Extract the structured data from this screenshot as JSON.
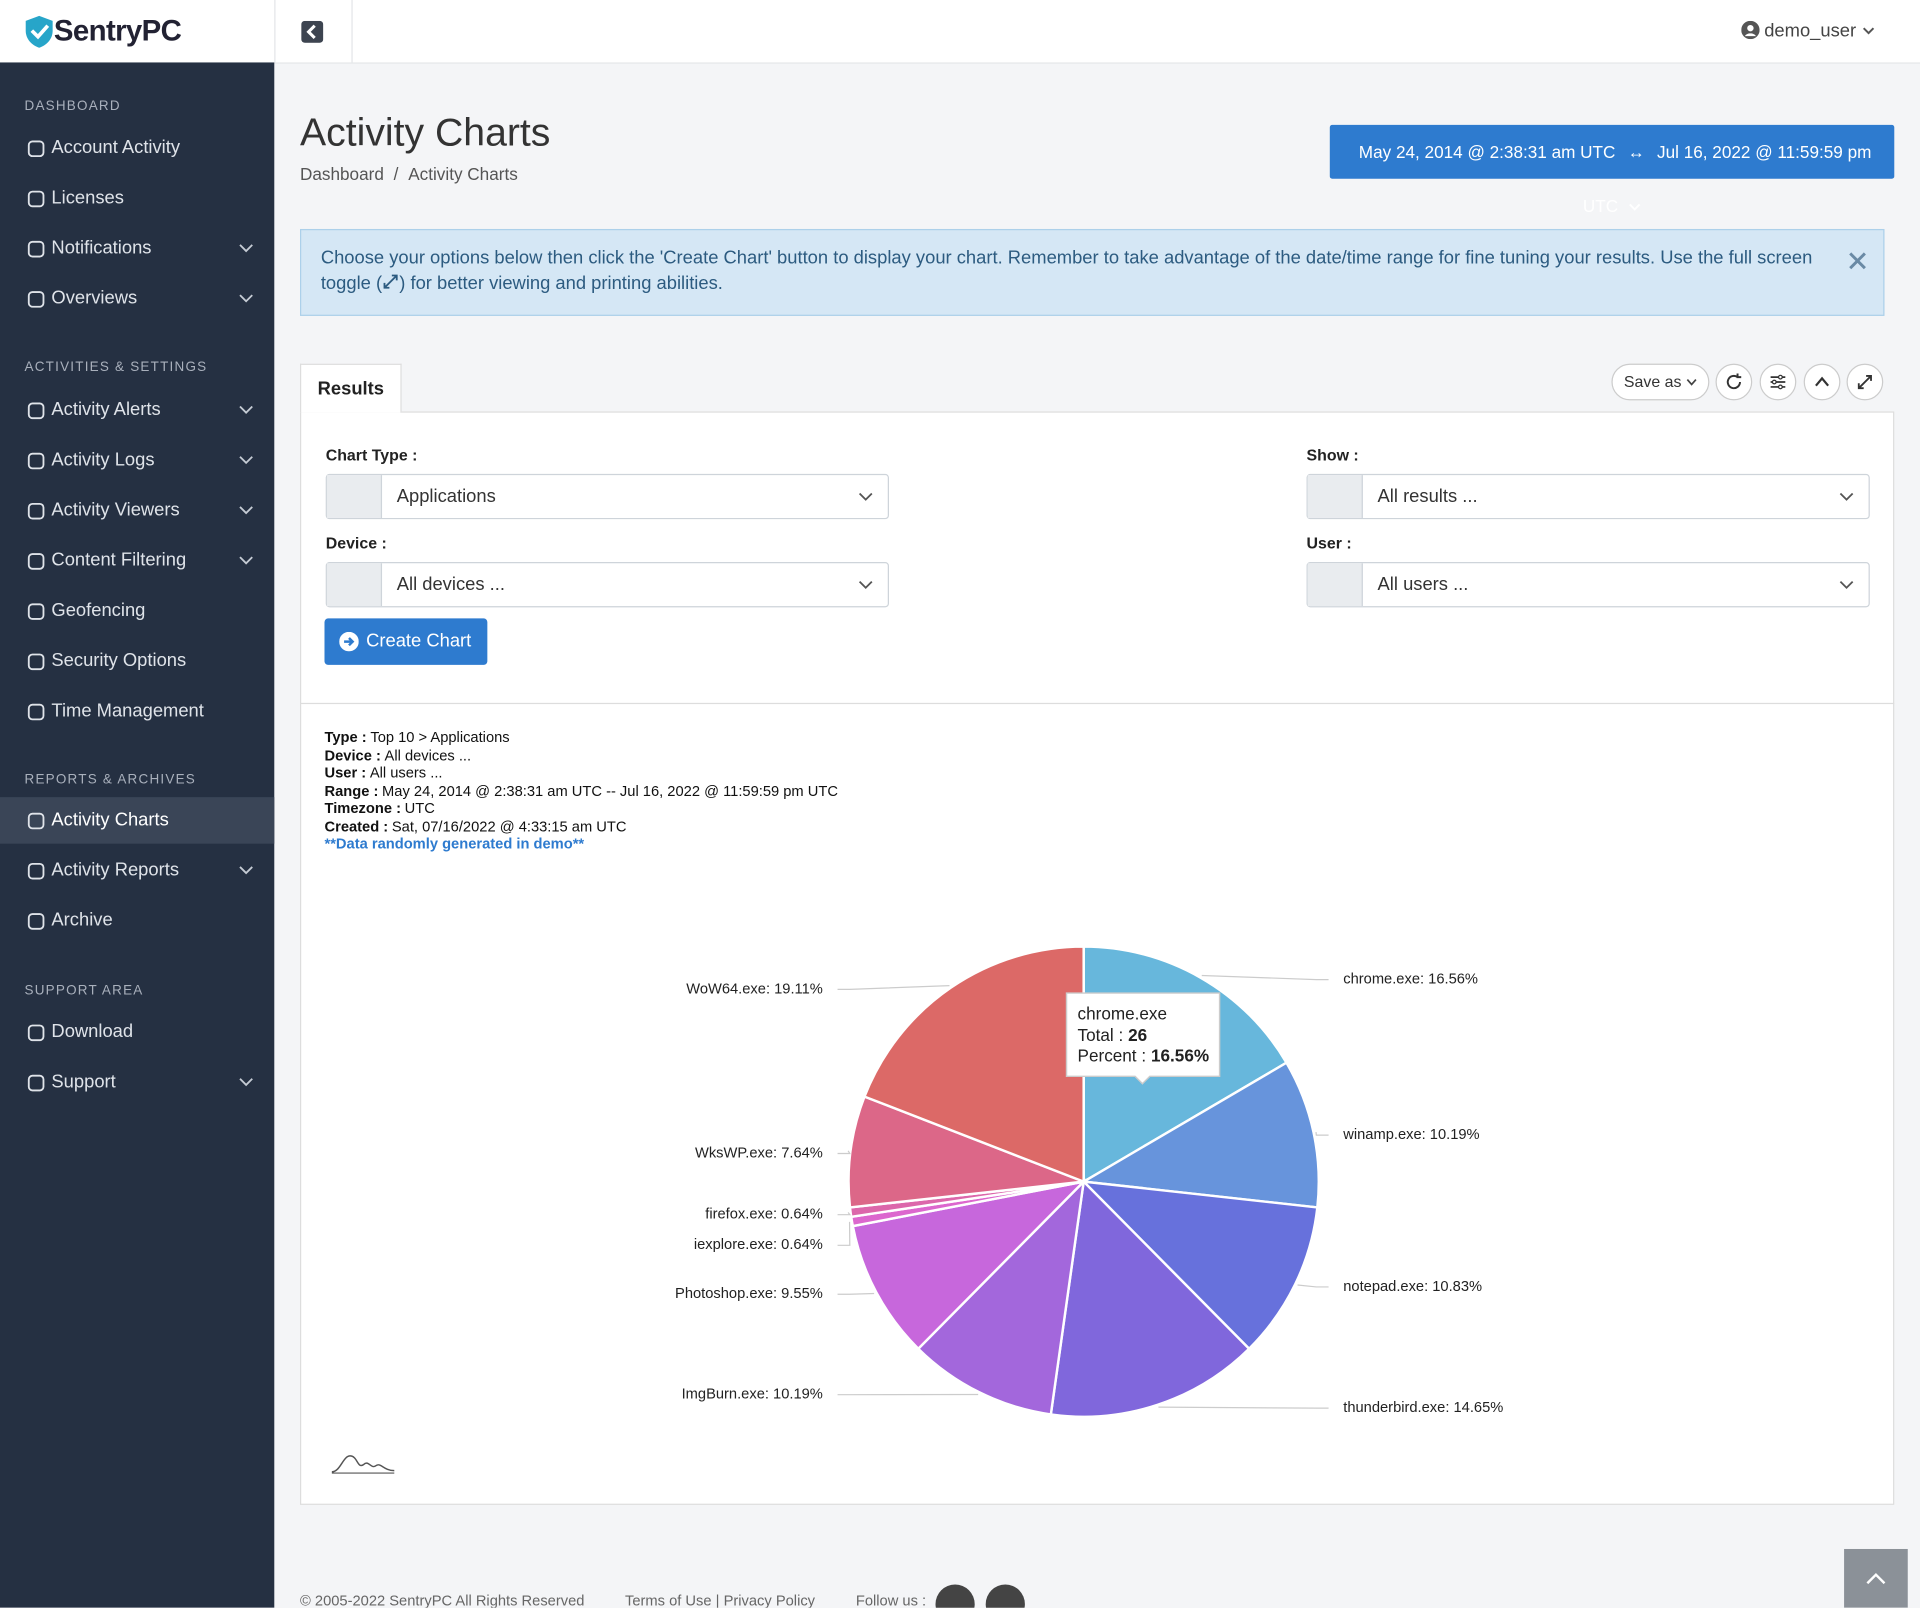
{
  "brand": "SentryPC",
  "user": "demo_user",
  "sidebar": [
    {
      "section": "DASHBOARD",
      "items": [
        {
          "label": "Account Activity",
          "expandable": false
        },
        {
          "label": "Licenses",
          "expandable": false
        },
        {
          "label": "Notifications",
          "expandable": true
        },
        {
          "label": "Overviews",
          "expandable": true
        }
      ]
    },
    {
      "section": "ACTIVITIES & SETTINGS",
      "items": [
        {
          "label": "Activity Alerts",
          "expandable": true
        },
        {
          "label": "Activity Logs",
          "expandable": true
        },
        {
          "label": "Activity Viewers",
          "expandable": true
        },
        {
          "label": "Content Filtering",
          "expandable": true
        },
        {
          "label": "Geofencing",
          "expandable": false
        },
        {
          "label": "Security Options",
          "expandable": false
        },
        {
          "label": "Time Management",
          "expandable": false
        }
      ]
    },
    {
      "section": "REPORTS & ARCHIVES",
      "items": [
        {
          "label": "Activity Charts",
          "expandable": false,
          "active": true
        },
        {
          "label": "Activity Reports",
          "expandable": true
        },
        {
          "label": "Archive",
          "expandable": false
        }
      ]
    },
    {
      "section": "SUPPORT AREA",
      "items": [
        {
          "label": "Download",
          "expandable": false
        },
        {
          "label": "Support",
          "expandable": true
        }
      ]
    }
  ],
  "page": {
    "title": "Activity Charts",
    "breadcrumb": [
      "Dashboard",
      "Activity Charts"
    ],
    "breadcrumb_separator": "/",
    "date_range": {
      "start": "May 24, 2014 @ 2:38:31 am UTC",
      "arrow": "↔",
      "end": "Jul 16, 2022 @ 11:59:59 pm UTC"
    }
  },
  "alert": {
    "before_icon": "Choose your options below then click the 'Create Chart' button to display your chart.  Remember to take advantage of the date/time range for fine tuning your results.  Use the full screen toggle (",
    "after_icon": ") for better viewing and printing abilities."
  },
  "panel": {
    "tab": "Results",
    "save_as": "Save as",
    "fields": [
      {
        "label": "Chart Type :",
        "value": "Applications"
      },
      {
        "label": "Show :",
        "value": "All results ..."
      },
      {
        "label": "Device :",
        "value": "All devices ..."
      },
      {
        "label": "User :",
        "value": "All users ..."
      }
    ],
    "button": "Create Chart"
  },
  "info": [
    {
      "key": "Type :",
      "value": "Top 10 > Applications"
    },
    {
      "key": "Device :",
      "value": "All devices ..."
    },
    {
      "key": "User :",
      "value": "All users ..."
    },
    {
      "key": "Range :",
      "value": "May 24, 2014 @ 2:38:31 am UTC -- Jul 16, 2022 @ 11:59:59 pm UTC"
    },
    {
      "key": "Timezone :",
      "value": "UTC"
    },
    {
      "key": "Created :",
      "value": "Sat, 07/16/2022 @ 4:33:15 am UTC"
    }
  ],
  "info_note": "**Data randomly generated in demo**",
  "chart_data": {
    "type": "pie",
    "values": [
      16.56,
      10.19,
      10.83,
      14.65,
      10.19,
      9.55,
      0.64,
      0.64,
      7.64,
      19.11
    ],
    "value_labels": [
      "chrome.exe: 16.56%",
      "winamp.exe: 10.19%",
      "notepad.exe: 10.83%",
      "thunderbird.exe: 14.65%",
      "ImgBurn.exe: 10.19%",
      "Photoshop.exe: 9.55%",
      "iexplore.exe: 0.64%",
      "firefox.exe: 0.64%",
      "WksWP.exe: 7.64%",
      "WoW64.exe: 19.11%"
    ],
    "colors": [
      "#67b7dc",
      "#6794dc",
      "#6771dc",
      "#8067dc",
      "#a367dc",
      "#c767dc",
      "#dc67ce",
      "#dc67ab",
      "#dc6788",
      "#dc6967"
    ],
    "tooltip": {
      "name": "chrome.exe",
      "total_label": "Total :",
      "total": 26,
      "percent_label": "Percent :",
      "percent": "16.56%"
    }
  },
  "footer": {
    "copyright": "© 2005-2022 SentryPC All Rights Reserved",
    "terms": "Terms of Use",
    "separator": "|",
    "privacy": "Privacy Policy",
    "follow": "Follow us :"
  }
}
